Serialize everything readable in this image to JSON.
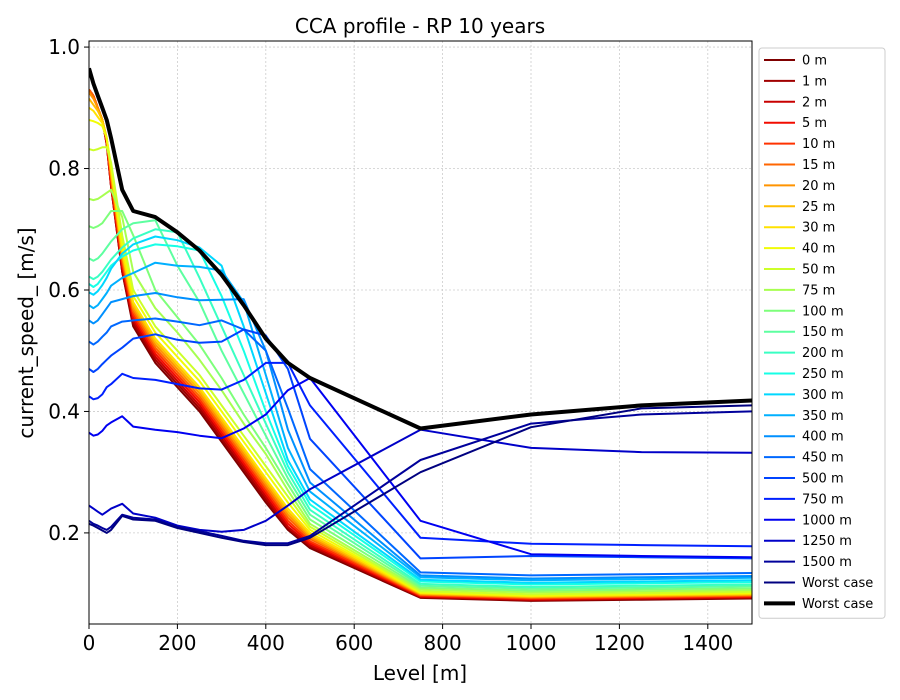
{
  "chart_data": {
    "type": "line",
    "title": "CCA profile - RP 10 years",
    "xlabel": "Level [m]",
    "ylabel": "current_speed_ [m/s]",
    "xlim": [
      0,
      1500
    ],
    "ylim": [
      0.05,
      1.01
    ],
    "xticks": [
      "0",
      "200",
      "400",
      "600",
      "800",
      "1000",
      "1200",
      "1400"
    ],
    "yticks": [
      "0.2",
      "0.4",
      "0.6",
      "0.8",
      "1.0"
    ],
    "grid": true,
    "legend_position": "right",
    "x": [
      0,
      10,
      20,
      30,
      40,
      50,
      75,
      100,
      150,
      200,
      250,
      300,
      350,
      400,
      450,
      500,
      750,
      1000,
      1250,
      1500
    ],
    "series": [
      {
        "name": "0 m",
        "color": "#7f0000",
        "values": [
          0.93,
          0.92,
          0.9,
          0.88,
          0.84,
          0.77,
          0.63,
          0.54,
          0.48,
          0.44,
          0.4,
          0.35,
          0.3,
          0.25,
          0.205,
          0.175,
          0.093,
          0.088,
          0.09,
          0.092
        ]
      },
      {
        "name": "1 m",
        "color": "#a10000",
        "values": [
          0.93,
          0.92,
          0.9,
          0.88,
          0.84,
          0.77,
          0.63,
          0.545,
          0.485,
          0.445,
          0.405,
          0.355,
          0.305,
          0.255,
          0.208,
          0.178,
          0.094,
          0.089,
          0.091,
          0.093
        ]
      },
      {
        "name": "2 m",
        "color": "#c80000",
        "values": [
          0.93,
          0.92,
          0.9,
          0.88,
          0.84,
          0.77,
          0.635,
          0.55,
          0.49,
          0.45,
          0.41,
          0.36,
          0.31,
          0.26,
          0.21,
          0.18,
          0.095,
          0.09,
          0.092,
          0.094
        ]
      },
      {
        "name": "5 m",
        "color": "#f20c00",
        "values": [
          0.93,
          0.92,
          0.9,
          0.88,
          0.845,
          0.775,
          0.64,
          0.555,
          0.495,
          0.455,
          0.415,
          0.365,
          0.315,
          0.265,
          0.215,
          0.183,
          0.096,
          0.091,
          0.093,
          0.095
        ]
      },
      {
        "name": "10 m",
        "color": "#ff3300",
        "values": [
          0.93,
          0.92,
          0.9,
          0.88,
          0.845,
          0.78,
          0.645,
          0.56,
          0.5,
          0.46,
          0.42,
          0.37,
          0.32,
          0.27,
          0.22,
          0.186,
          0.097,
          0.092,
          0.094,
          0.096
        ]
      },
      {
        "name": "15 m",
        "color": "#ff6600",
        "values": [
          0.93,
          0.92,
          0.9,
          0.88,
          0.85,
          0.785,
          0.65,
          0.565,
          0.505,
          0.465,
          0.425,
          0.375,
          0.325,
          0.275,
          0.225,
          0.19,
          0.098,
          0.093,
          0.095,
          0.097
        ]
      },
      {
        "name": "20 m",
        "color": "#ff9400",
        "values": [
          0.925,
          0.915,
          0.9,
          0.88,
          0.85,
          0.79,
          0.655,
          0.57,
          0.51,
          0.47,
          0.43,
          0.38,
          0.33,
          0.28,
          0.23,
          0.193,
          0.099,
          0.094,
          0.096,
          0.098
        ]
      },
      {
        "name": "25 m",
        "color": "#ffbe00",
        "values": [
          0.915,
          0.905,
          0.895,
          0.88,
          0.85,
          0.795,
          0.66,
          0.575,
          0.515,
          0.475,
          0.435,
          0.385,
          0.335,
          0.285,
          0.235,
          0.196,
          0.1,
          0.095,
          0.097,
          0.099
        ]
      },
      {
        "name": "30 m",
        "color": "#ffe200",
        "values": [
          0.9,
          0.895,
          0.885,
          0.875,
          0.85,
          0.8,
          0.665,
          0.58,
          0.52,
          0.48,
          0.44,
          0.39,
          0.34,
          0.29,
          0.24,
          0.2,
          0.101,
          0.096,
          0.098,
          0.1
        ]
      },
      {
        "name": "40 m",
        "color": "#f1fc06",
        "values": [
          0.88,
          0.878,
          0.875,
          0.87,
          0.85,
          0.805,
          0.675,
          0.59,
          0.53,
          0.49,
          0.45,
          0.4,
          0.35,
          0.3,
          0.25,
          0.205,
          0.102,
          0.097,
          0.099,
          0.101
        ]
      },
      {
        "name": "50 m",
        "color": "#cdff29",
        "values": [
          0.832,
          0.83,
          0.832,
          0.835,
          0.835,
          0.81,
          0.69,
          0.6,
          0.54,
          0.5,
          0.46,
          0.41,
          0.36,
          0.31,
          0.26,
          0.21,
          0.104,
          0.099,
          0.101,
          0.103
        ]
      },
      {
        "name": "75 m",
        "color": "#a7ff50",
        "values": [
          0.75,
          0.748,
          0.75,
          0.755,
          0.76,
          0.765,
          0.72,
          0.63,
          0.57,
          0.53,
          0.485,
          0.435,
          0.38,
          0.33,
          0.27,
          0.215,
          0.107,
          0.102,
          0.104,
          0.106
        ]
      },
      {
        "name": "100 m",
        "color": "#7dff7a",
        "values": [
          0.705,
          0.702,
          0.705,
          0.71,
          0.72,
          0.73,
          0.73,
          0.69,
          0.6,
          0.555,
          0.51,
          0.455,
          0.395,
          0.34,
          0.28,
          0.222,
          0.11,
          0.105,
          0.107,
          0.109
        ]
      },
      {
        "name": "150 m",
        "color": "#5dffa0",
        "values": [
          0.652,
          0.648,
          0.652,
          0.66,
          0.67,
          0.68,
          0.7,
          0.71,
          0.715,
          0.64,
          0.58,
          0.5,
          0.43,
          0.36,
          0.29,
          0.23,
          0.113,
          0.108,
          0.11,
          0.112
        ]
      },
      {
        "name": "200 m",
        "color": "#39ffc3",
        "values": [
          0.622,
          0.618,
          0.622,
          0.63,
          0.64,
          0.65,
          0.67,
          0.685,
          0.7,
          0.695,
          0.62,
          0.54,
          0.46,
          0.38,
          0.3,
          0.238,
          0.116,
          0.111,
          0.113,
          0.115
        ]
      },
      {
        "name": "250 m",
        "color": "#16ffe6",
        "values": [
          0.61,
          0.605,
          0.61,
          0.62,
          0.63,
          0.64,
          0.655,
          0.665,
          0.675,
          0.672,
          0.665,
          0.59,
          0.5,
          0.4,
          0.31,
          0.247,
          0.12,
          0.115,
          0.117,
          0.119
        ]
      },
      {
        "name": "300 m",
        "color": "#00d8ff",
        "values": [
          0.596,
          0.592,
          0.598,
          0.608,
          0.62,
          0.635,
          0.66,
          0.675,
          0.688,
          0.682,
          0.67,
          0.64,
          0.54,
          0.43,
          0.32,
          0.255,
          0.123,
          0.118,
          0.12,
          0.122
        ]
      },
      {
        "name": "350 m",
        "color": "#00b0ff",
        "values": [
          0.575,
          0.57,
          0.575,
          0.585,
          0.595,
          0.607,
          0.62,
          0.628,
          0.645,
          0.64,
          0.638,
          0.632,
          0.58,
          0.46,
          0.34,
          0.268,
          0.127,
          0.122,
          0.124,
          0.126
        ]
      },
      {
        "name": "400 m",
        "color": "#0090ff",
        "values": [
          0.55,
          0.545,
          0.55,
          0.56,
          0.57,
          0.58,
          0.585,
          0.59,
          0.595,
          0.588,
          0.583,
          0.584,
          0.585,
          0.5,
          0.37,
          0.283,
          0.13,
          0.125,
          0.127,
          0.129
        ]
      },
      {
        "name": "450 m",
        "color": "#0068ff",
        "values": [
          0.515,
          0.51,
          0.515,
          0.523,
          0.53,
          0.54,
          0.548,
          0.55,
          0.553,
          0.548,
          0.542,
          0.55,
          0.535,
          0.5,
          0.405,
          0.305,
          0.135,
          0.13,
          0.132,
          0.134
        ]
      },
      {
        "name": "500 m",
        "color": "#0044ff",
        "values": [
          0.47,
          0.465,
          0.47,
          0.478,
          0.485,
          0.492,
          0.505,
          0.52,
          0.527,
          0.518,
          0.513,
          0.515,
          0.535,
          0.525,
          0.47,
          0.355,
          0.158,
          0.162,
          0.16,
          0.158
        ]
      },
      {
        "name": "750 m",
        "color": "#0020ff",
        "values": [
          0.425,
          0.42,
          0.422,
          0.428,
          0.44,
          0.445,
          0.462,
          0.455,
          0.452,
          0.445,
          0.438,
          0.436,
          0.452,
          0.48,
          0.48,
          0.41,
          0.192,
          0.182,
          0.18,
          0.178
        ]
      },
      {
        "name": "1000 m",
        "color": "#0000f1",
        "values": [
          0.365,
          0.36,
          0.362,
          0.368,
          0.377,
          0.382,
          0.392,
          0.375,
          0.37,
          0.366,
          0.36,
          0.356,
          0.372,
          0.395,
          0.435,
          0.455,
          0.22,
          0.165,
          0.162,
          0.16
        ]
      },
      {
        "name": "1250 m",
        "color": "#0000c8",
        "values": [
          0.245,
          0.24,
          0.235,
          0.23,
          0.235,
          0.24,
          0.248,
          0.232,
          0.225,
          0.212,
          0.205,
          0.202,
          0.205,
          0.22,
          0.245,
          0.272,
          0.37,
          0.34,
          0.333,
          0.332
        ]
      },
      {
        "name": "1500 m",
        "color": "#00009b",
        "values": [
          0.22,
          0.215,
          0.212,
          0.208,
          0.205,
          0.21,
          0.23,
          0.225,
          0.222,
          0.21,
          0.203,
          0.195,
          0.187,
          0.183,
          0.183,
          0.195,
          0.32,
          0.38,
          0.395,
          0.4
        ]
      },
      {
        "name": "Worst case",
        "color": "#000080",
        "values": [
          0.215,
          0.212,
          0.208,
          0.204,
          0.2,
          0.205,
          0.228,
          0.222,
          0.22,
          0.208,
          0.2,
          0.192,
          0.185,
          0.18,
          0.18,
          0.192,
          0.3,
          0.374,
          0.405,
          0.41
        ]
      },
      {
        "name": "Worst case",
        "color": "#000000",
        "width": 4,
        "values": [
          0.965,
          0.94,
          0.92,
          0.9,
          0.88,
          0.85,
          0.765,
          0.73,
          0.72,
          0.695,
          0.665,
          0.625,
          0.575,
          0.52,
          0.48,
          0.455,
          0.372,
          0.395,
          0.41,
          0.418
        ]
      }
    ]
  }
}
